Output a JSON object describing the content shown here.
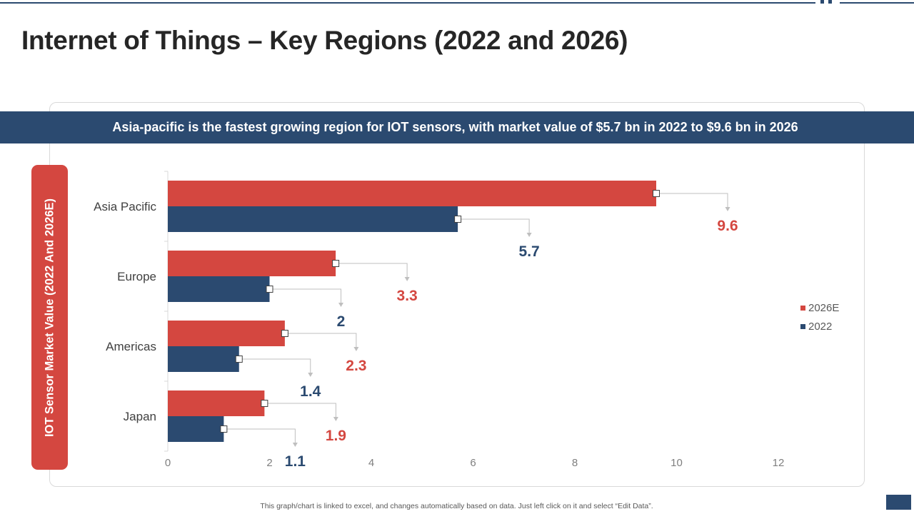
{
  "title": "Internet of Things – Key Regions (2022 and 2026)",
  "banner": "Asia-pacific is the fastest growing region for IOT sensors, with market value of $5.7 bn in 2022 to $9.6 bn in 2026",
  "y_axis_title": "IOT Sensor Market Value (2022 And 2026E)",
  "footer": "This graph/chart is linked to excel,  and changes automatically based on data. Just left click on it and select “Edit Data”.",
  "colors": {
    "series_2026": "#d44740",
    "series_2022": "#2b4a70",
    "accent": "#2b4a70"
  },
  "chart_data": {
    "type": "bar",
    "orientation": "horizontal",
    "categories": [
      "Asia Pacific",
      "Europe",
      "Americas",
      "Japan"
    ],
    "series": [
      {
        "name": "2026E",
        "values": [
          9.6,
          3.3,
          2.3,
          1.9
        ],
        "color": "#d44740"
      },
      {
        "name": "2022",
        "values": [
          5.7,
          2,
          1.4,
          1.1
        ],
        "color": "#2b4a70"
      }
    ],
    "xlim": [
      0,
      12
    ],
    "x_ticks": [
      "0",
      "2",
      "4",
      "6",
      "8",
      "10",
      "12"
    ],
    "legend": [
      "2026E",
      "2022"
    ],
    "legend_position": "right",
    "grid": false
  }
}
